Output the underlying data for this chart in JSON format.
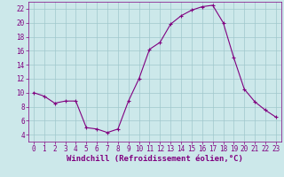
{
  "x": [
    0,
    1,
    2,
    3,
    4,
    5,
    6,
    7,
    8,
    9,
    10,
    11,
    12,
    13,
    14,
    15,
    16,
    17,
    18,
    19,
    20,
    21,
    22,
    23
  ],
  "y": [
    10,
    9.5,
    8.5,
    8.8,
    8.8,
    5.0,
    4.8,
    4.3,
    4.8,
    8.8,
    12.0,
    16.2,
    17.2,
    19.8,
    21.0,
    21.8,
    22.3,
    22.5,
    20.0,
    15.0,
    10.5,
    8.7,
    7.5,
    6.5
  ],
  "line_color": "#800080",
  "marker": "+",
  "marker_size": 3,
  "marker_linewidth": 0.8,
  "bg_color": "#cce8ea",
  "grid_color": "#a0c8cc",
  "xlabel": "Windchill (Refroidissement éolien,°C)",
  "ylim": [
    3,
    23
  ],
  "xlim": [
    -0.5,
    23.5
  ],
  "yticks": [
    4,
    6,
    8,
    10,
    12,
    14,
    16,
    18,
    20,
    22
  ],
  "xticks": [
    0,
    1,
    2,
    3,
    4,
    5,
    6,
    7,
    8,
    9,
    10,
    11,
    12,
    13,
    14,
    15,
    16,
    17,
    18,
    19,
    20,
    21,
    22,
    23
  ],
  "tick_color": "#800080",
  "label_color": "#800080",
  "font_size_xlabel": 6.5,
  "font_size_ticks": 5.5,
  "linewidth": 0.8
}
